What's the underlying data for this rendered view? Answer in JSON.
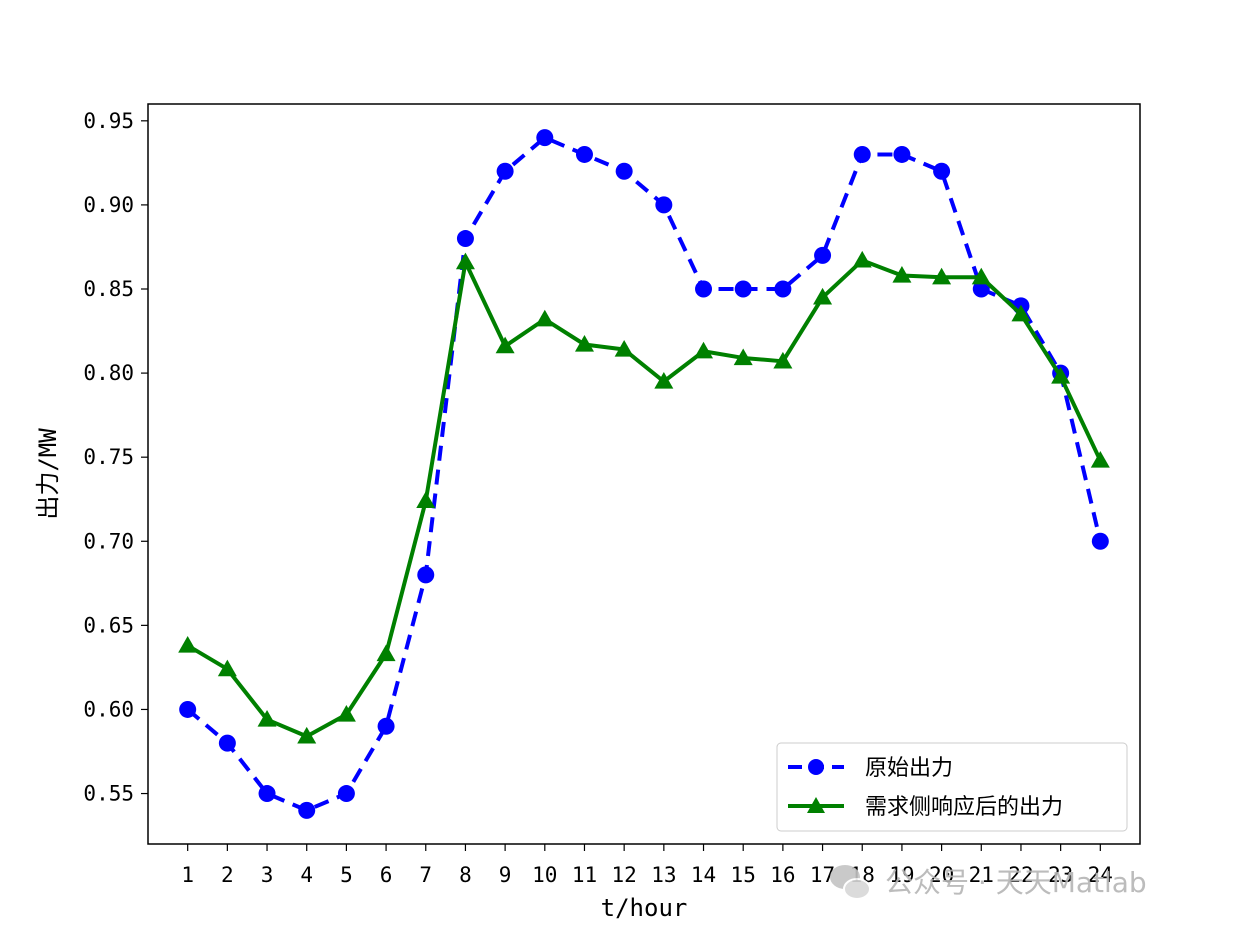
{
  "chart_data": {
    "type": "line",
    "xlabel": "t/hour",
    "ylabel": "出力/MW",
    "x": [
      1,
      2,
      3,
      4,
      5,
      6,
      7,
      8,
      9,
      10,
      11,
      12,
      13,
      14,
      15,
      16,
      17,
      18,
      19,
      20,
      21,
      22,
      23,
      24
    ],
    "xlim": [
      0.0,
      25.0
    ],
    "ylim": [
      0.52,
      0.96
    ],
    "yticks": [
      "0.55",
      "0.60",
      "0.65",
      "0.70",
      "0.75",
      "0.80",
      "0.85",
      "0.90",
      "0.95"
    ],
    "grid": false,
    "legend_position": "lower-right",
    "series": [
      {
        "name": "原始出力",
        "color": "#0000ff",
        "style": "dashed",
        "marker": "circle",
        "values": [
          0.6,
          0.58,
          0.55,
          0.54,
          0.55,
          0.59,
          0.68,
          0.88,
          0.92,
          0.94,
          0.93,
          0.92,
          0.9,
          0.85,
          0.85,
          0.85,
          0.87,
          0.93,
          0.93,
          0.92,
          0.85,
          0.84,
          0.8,
          0.7
        ]
      },
      {
        "name": "需求侧响应后的出力",
        "color": "#008000",
        "style": "solid",
        "marker": "triangle",
        "values": [
          0.638,
          0.624,
          0.594,
          0.584,
          0.597,
          0.633,
          0.724,
          0.866,
          0.816,
          0.832,
          0.817,
          0.814,
          0.795,
          0.813,
          0.809,
          0.807,
          0.845,
          0.867,
          0.858,
          0.857,
          0.857,
          0.835,
          0.798,
          0.748
        ]
      }
    ]
  },
  "watermark": {
    "text": "公众号 · 天天Matlab",
    "icon": "wechat-icon"
  }
}
